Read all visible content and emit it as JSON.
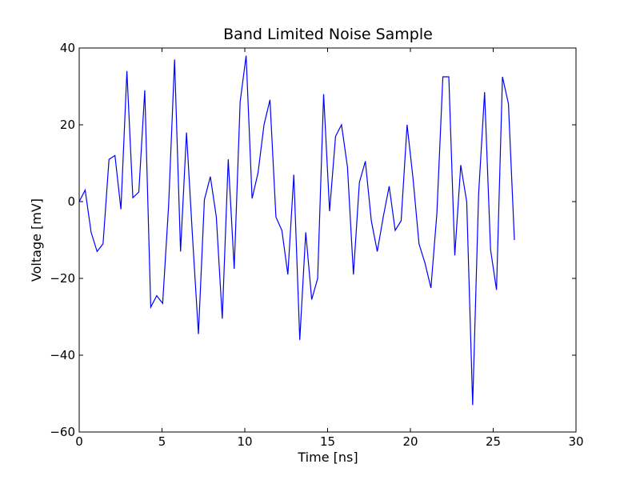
{
  "chart_data": {
    "type": "line",
    "title": "Band Limited Noise Sample",
    "xlabel": "Time [ns]",
    "ylabel": "Voltage [mV]",
    "xlim": [
      0,
      30
    ],
    "ylim": [
      -60,
      40
    ],
    "xticks": [
      0,
      5,
      10,
      15,
      20,
      25,
      30
    ],
    "yticks": [
      -60,
      -40,
      -20,
      0,
      20,
      40
    ],
    "xtick_labels": [
      "0",
      "5",
      "10",
      "15",
      "20",
      "25",
      "30"
    ],
    "ytick_labels": [
      "−60",
      "−40",
      "−20",
      "0",
      "20",
      "40"
    ],
    "grid": false,
    "line_color": "#0000ff",
    "series": [
      {
        "x": [
          0.0,
          0.36,
          0.72,
          1.08,
          1.44,
          1.8,
          2.16,
          2.52,
          2.88,
          3.24,
          3.6,
          3.96,
          4.32,
          4.68,
          5.04,
          5.4,
          5.76,
          6.12,
          6.48,
          6.84,
          7.2,
          7.56,
          7.92,
          8.28,
          8.64,
          9.0,
          9.36,
          9.72,
          10.08,
          10.44,
          10.8,
          11.16,
          11.52,
          11.88,
          12.24,
          12.6,
          12.96,
          13.32,
          13.68,
          14.04,
          14.4,
          14.76,
          15.12,
          15.48,
          15.84,
          16.2,
          16.56,
          16.92,
          17.28,
          17.64,
          18.0,
          18.36,
          18.72,
          19.08,
          19.44,
          19.8,
          20.16,
          20.52,
          20.88,
          21.24,
          21.6,
          21.96,
          22.32,
          22.68,
          23.04,
          23.4,
          23.76,
          24.12,
          24.48,
          24.84,
          25.2,
          25.56,
          25.92,
          26.28
        ],
        "y": [
          0,
          3,
          -8,
          -13,
          -11,
          11,
          12,
          -2,
          34,
          1,
          2.5,
          29,
          -27.5,
          -24.5,
          -26.5,
          -1,
          37,
          -13,
          18,
          -9,
          -34.5,
          0.5,
          6.5,
          -4,
          -30.5,
          11,
          -17.5,
          26,
          38,
          0.8,
          7.5,
          20,
          26.5,
          -4,
          -7.5,
          -19,
          7,
          -36,
          -8,
          -25.5,
          -20,
          28,
          -2.5,
          17,
          20,
          9,
          -19,
          5,
          10.5,
          -5,
          -13,
          -4,
          4,
          -7.5,
          -5,
          20,
          6,
          -11,
          -16,
          -22.5,
          -3,
          32.5,
          32.5,
          -14,
          9.5,
          0,
          -53,
          2,
          28.5,
          -12.5,
          -23,
          32.5,
          25.5,
          -10
        ]
      }
    ]
  }
}
